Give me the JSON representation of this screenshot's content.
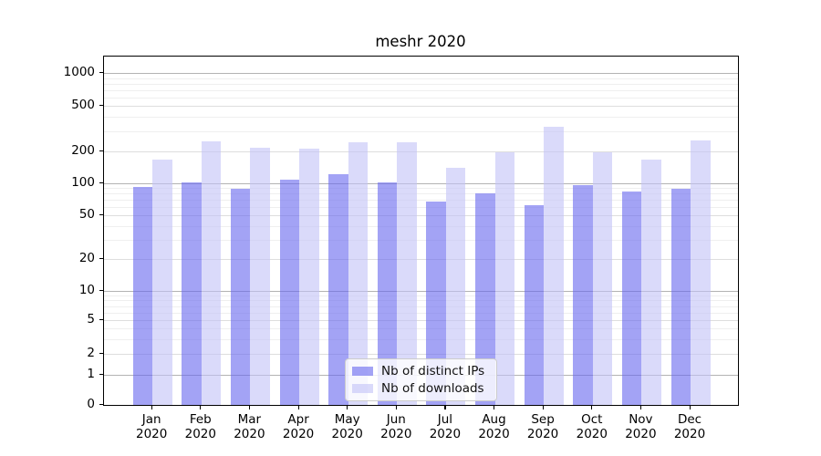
{
  "chart_data": {
    "type": "bar",
    "title": "meshr 2020",
    "categories": [
      "Jan",
      "Feb",
      "Mar",
      "Apr",
      "May",
      "Jun",
      "Jul",
      "Aug",
      "Sep",
      "Oct",
      "Nov",
      "Dec"
    ],
    "x_tick_year": "2020",
    "series": [
      {
        "name": "Nb of distinct IPs",
        "color": "#6666ee",
        "opacity": 0.6,
        "values": [
          92,
          102,
          89,
          108,
          122,
          103,
          68,
          81,
          62,
          96,
          84,
          89
        ]
      },
      {
        "name": "Nb of downloads",
        "color": "#c1c1f7",
        "opacity": 0.6,
        "values": [
          168,
          243,
          215,
          212,
          242,
          239,
          141,
          197,
          330,
          198,
          169,
          248
        ]
      }
    ],
    "yscale": "symlog",
    "y_ticks": [
      0,
      1,
      2,
      5,
      10,
      20,
      50,
      100,
      200,
      500,
      1000
    ],
    "ylim": [
      0,
      1400
    ],
    "xlabel": "",
    "ylabel": "",
    "grid": true,
    "legend_position": "lower center"
  }
}
